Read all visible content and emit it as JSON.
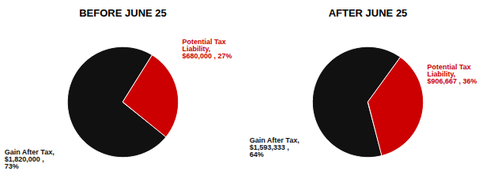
{
  "chart_data": [
    {
      "type": "pie",
      "title": "BEFORE JUNE 25",
      "values": [
        73,
        27
      ],
      "value_labels": [
        "Gain After Tax,\n$1,820,000 ,\n73%",
        "Potential Tax\nLiability,\n$680,000 , 27%"
      ],
      "colors": [
        "#111111",
        "#cc0000"
      ],
      "data_labels": true,
      "tick_labels": false
    },
    {
      "type": "pie",
      "title": "AFTER JUNE 25",
      "values": [
        64,
        36
      ],
      "value_labels": [
        "Gain After Tax,\n$1,593,333 ,\n64%",
        "Potential Tax\nLiability,\n$906,667 , 36%"
      ],
      "colors": [
        "#111111",
        "#cc0000"
      ],
      "data_labels": true,
      "tick_labels": false
    }
  ]
}
